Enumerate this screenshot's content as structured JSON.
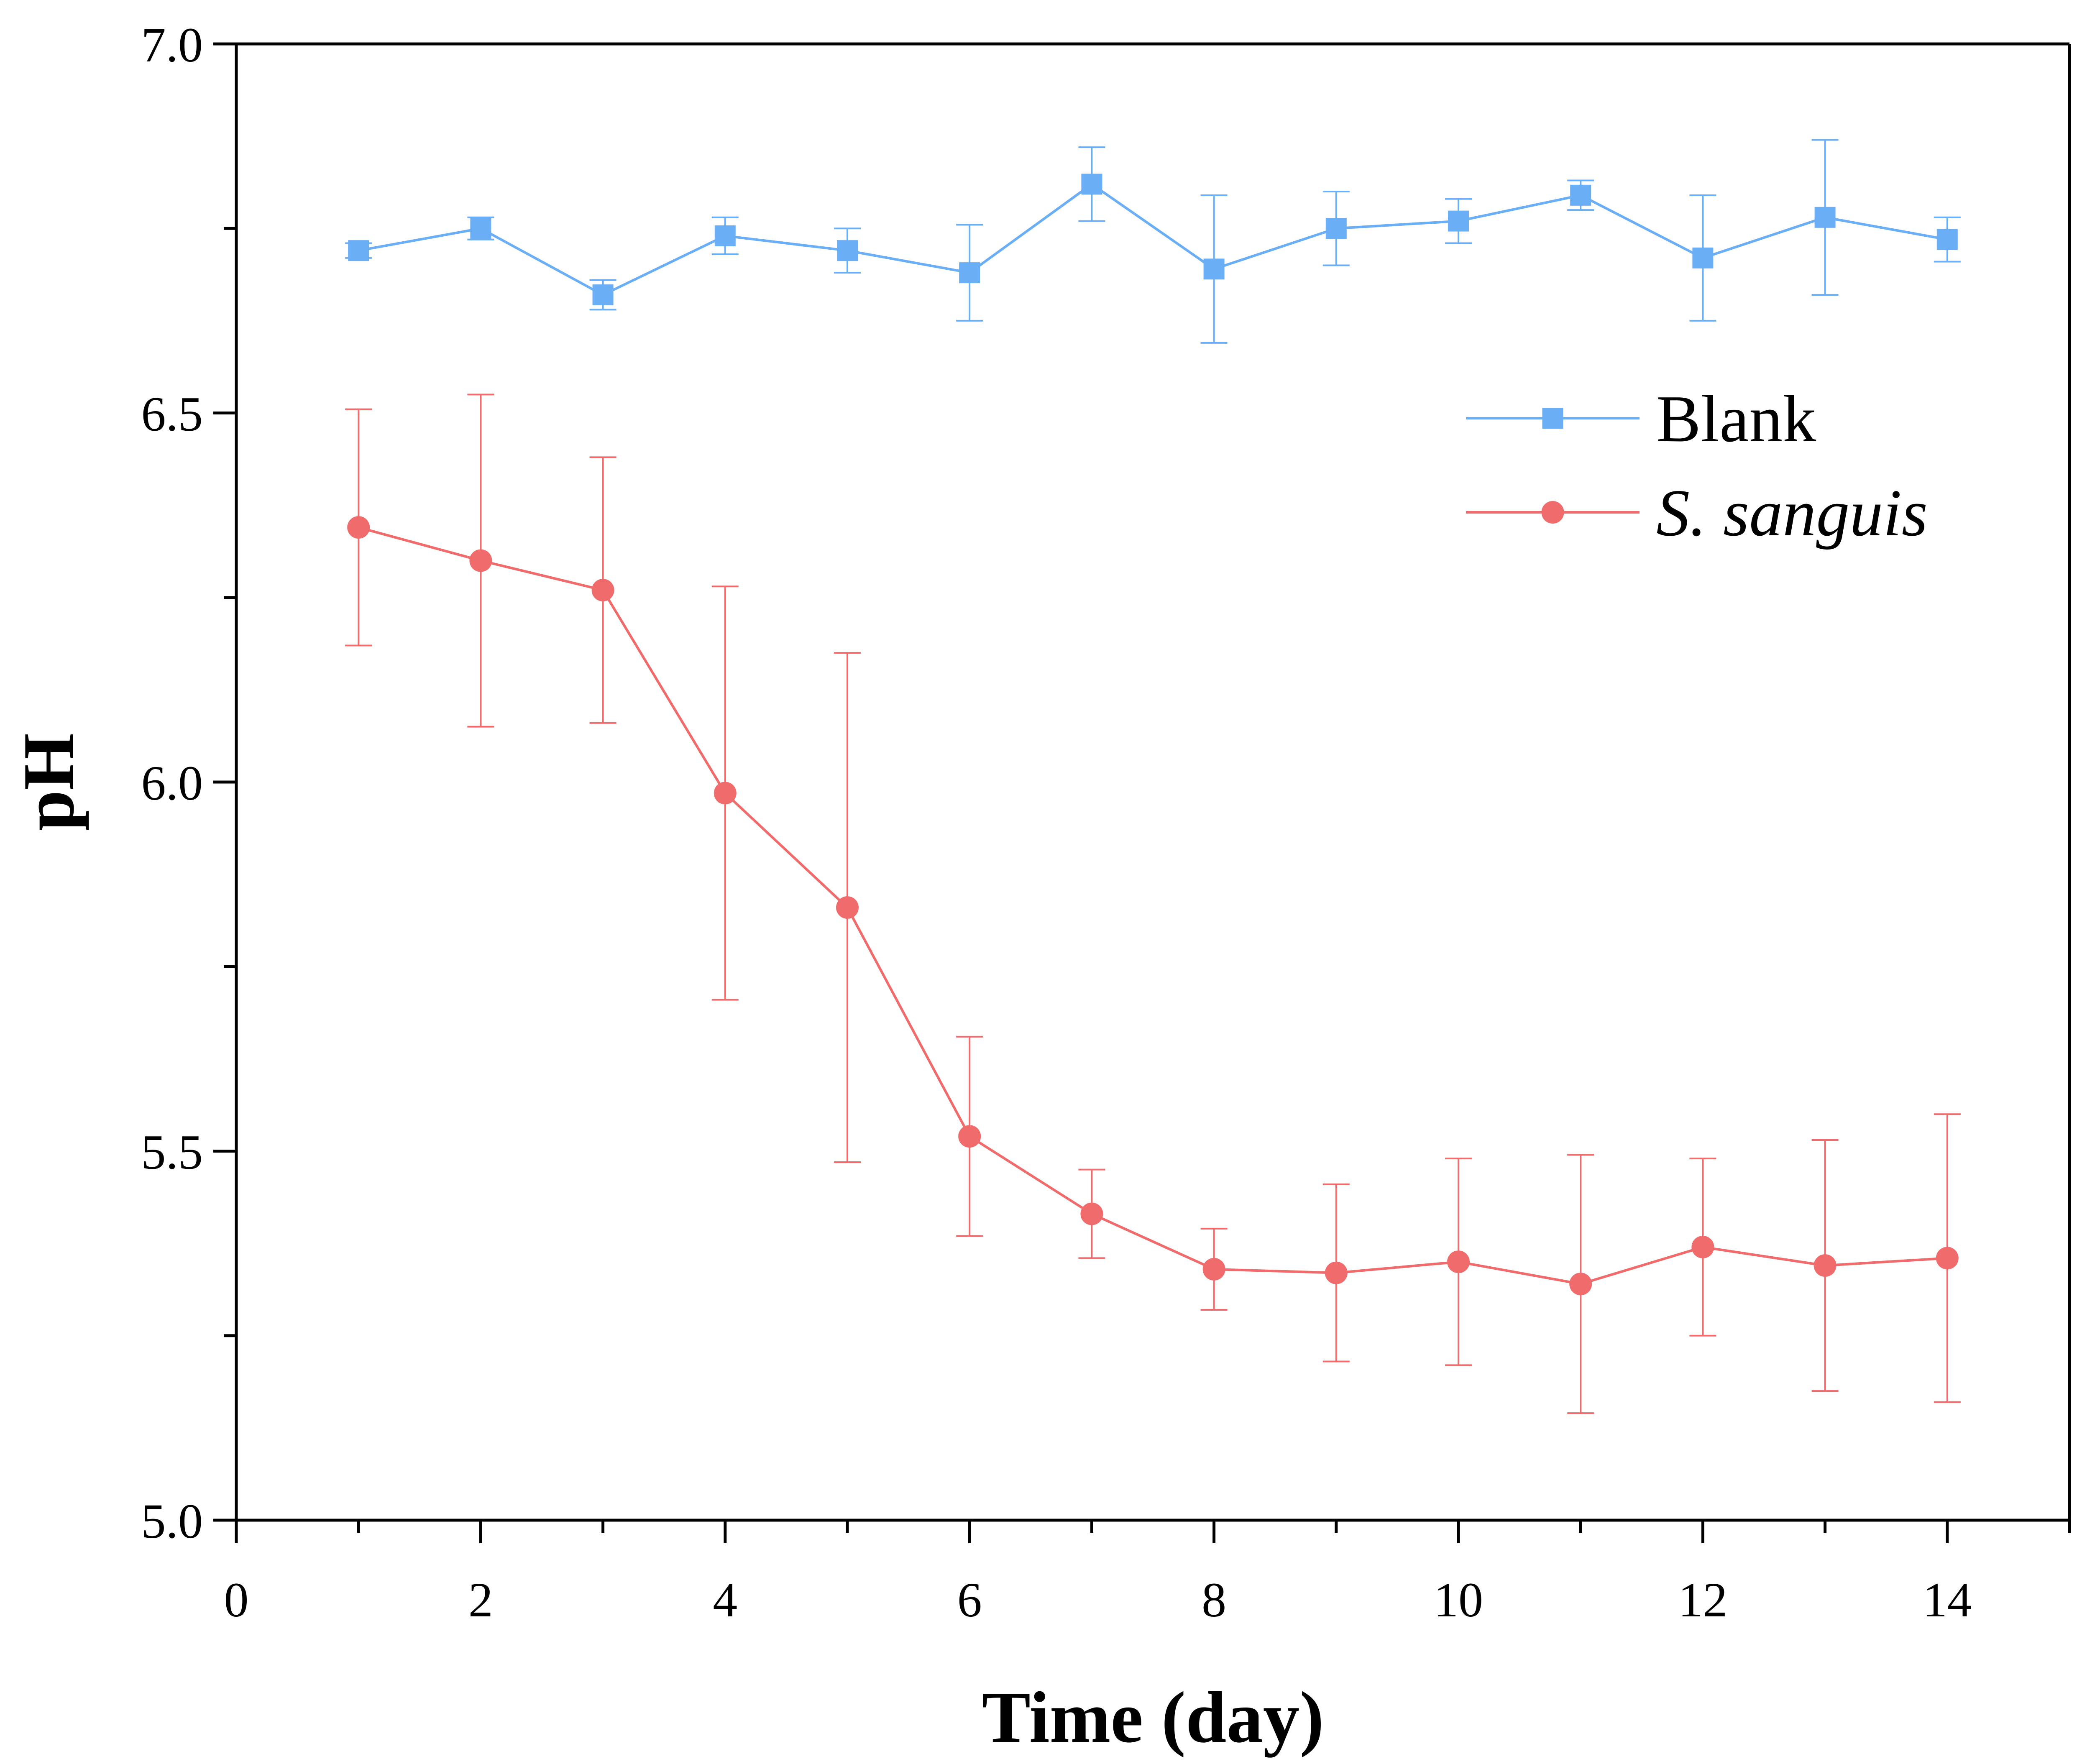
{
  "chart_data": {
    "type": "line",
    "title": "",
    "xlabel": "Time (day)",
    "ylabel": "pH",
    "xlim": [
      0,
      15
    ],
    "ylim": [
      5.0,
      7.0
    ],
    "xticks": [
      0,
      2,
      4,
      6,
      8,
      10,
      12,
      14
    ],
    "xtick_labels": [
      "0",
      "2",
      "4",
      "6",
      "8",
      "10",
      "12",
      "14"
    ],
    "xminor_ticks": [
      1,
      3,
      5,
      7,
      9,
      11,
      13,
      15
    ],
    "yticks": [
      5.0,
      5.5,
      6.0,
      6.5,
      7.0
    ],
    "ytick_labels": [
      "5.0",
      "5.5",
      "6.0",
      "6.5",
      "7.0"
    ],
    "yminor_ticks": [
      5.25,
      5.75,
      6.25,
      6.75
    ],
    "grid": false,
    "legend_position": "top-right",
    "x": [
      1,
      2,
      3,
      4,
      5,
      6,
      7,
      8,
      9,
      10,
      11,
      12,
      13,
      14
    ],
    "series": [
      {
        "name": "Blank",
        "color": "#6aaef5",
        "marker": "square",
        "italic": false,
        "values": [
          6.72,
          6.75,
          6.66,
          6.74,
          6.72,
          6.69,
          6.81,
          6.695,
          6.75,
          6.76,
          6.795,
          6.71,
          6.765,
          6.735
        ],
        "errors": [
          0.01,
          0.015,
          0.02,
          0.025,
          0.03,
          0.065,
          0.05,
          0.1,
          0.05,
          0.03,
          0.02,
          0.085,
          0.105,
          0.03
        ]
      },
      {
        "name": "S. sanguis",
        "color": "#f06b6b",
        "marker": "circle",
        "italic": true,
        "values": [
          6.345,
          6.3,
          6.26,
          5.985,
          5.83,
          5.52,
          5.415,
          5.34,
          5.335,
          5.35,
          5.32,
          5.37,
          5.345,
          5.355
        ],
        "errors": [
          0.16,
          0.225,
          0.18,
          0.28,
          0.345,
          0.135,
          0.06,
          0.055,
          0.12,
          0.14,
          0.175,
          0.12,
          0.17,
          0.195
        ]
      }
    ]
  }
}
